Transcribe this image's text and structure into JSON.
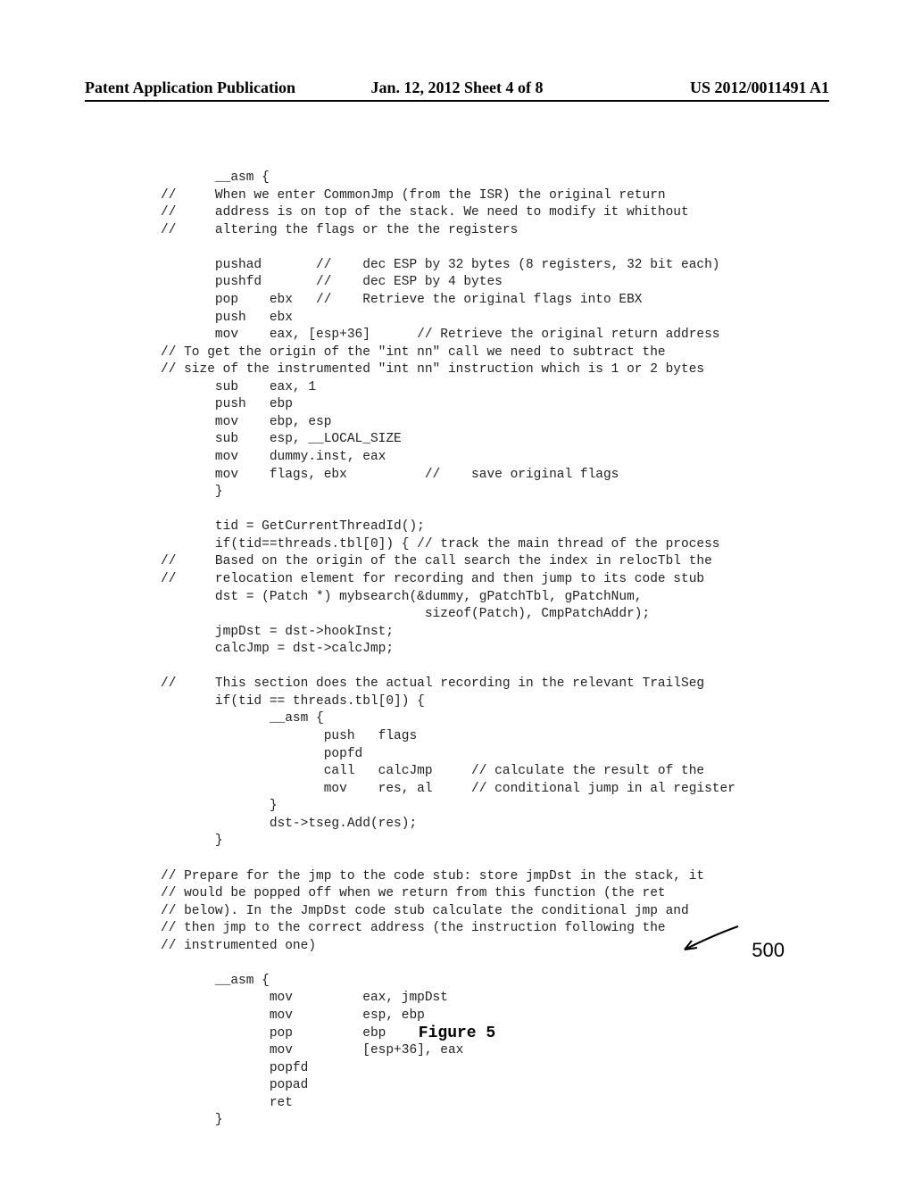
{
  "header": {
    "left": "Patent Application Publication",
    "center": "Jan. 12, 2012  Sheet 4 of 8",
    "right": "US 2012/0011491 A1"
  },
  "code": {
    "lines": [
      "       __asm {",
      "//     When we enter CommonJmp (from the ISR) the original return",
      "//     address is on top of the stack. We need to modify it whithout",
      "//     altering the flags or the the registers",
      "",
      "       pushad       //    dec ESP by 32 bytes (8 registers, 32 bit each)",
      "       pushfd       //    dec ESP by 4 bytes",
      "       pop    ebx   //    Retrieve the original flags into EBX",
      "       push   ebx",
      "       mov    eax, [esp+36]      // Retrieve the original return address",
      "// To get the origin of the \"int nn\" call we need to subtract the",
      "// size of the instrumented \"int nn\" instruction which is 1 or 2 bytes",
      "       sub    eax, 1",
      "       push   ebp",
      "       mov    ebp, esp",
      "       sub    esp, __LOCAL_SIZE",
      "       mov    dummy.inst, eax",
      "       mov    flags, ebx          //    save original flags",
      "       }",
      "",
      "       tid = GetCurrentThreadId();",
      "       if(tid==threads.tbl[0]) { // track the main thread of the process",
      "//     Based on the origin of the call search the index in relocTbl the",
      "//     relocation element for recording and then jump to its code stub",
      "       dst = (Patch *) mybsearch(&dummy, gPatchTbl, gPatchNum,",
      "                                  sizeof(Patch), CmpPatchAddr);",
      "       jmpDst = dst->hookInst;",
      "       calcJmp = dst->calcJmp;",
      "",
      "//     This section does the actual recording in the relevant TrailSeg",
      "       if(tid == threads.tbl[0]) {",
      "              __asm {",
      "                     push   flags",
      "                     popfd",
      "                     call   calcJmp     // calculate the result of the",
      "                     mov    res, al     // conditional jump in al register",
      "              }",
      "              dst->tseg.Add(res);",
      "       }",
      "",
      "// Prepare for the jmp to the code stub: store jmpDst in the stack, it",
      "// would be popped off when we return from this function (the ret",
      "// below). In the JmpDst code stub calculate the conditional jmp and",
      "// then jmp to the correct address (the instruction following the",
      "// instrumented one)",
      "",
      "       __asm {",
      "              mov         eax, jmpDst",
      "              mov         esp, ebp",
      "              pop         ebp",
      "              mov         [esp+36], eax",
      "              popfd",
      "              popad",
      "              ret",
      "       }"
    ]
  },
  "figure_label": "Figure 5",
  "ref_number": "500",
  "arrow": {
    "stroke": "#000",
    "stroke_width": 2
  }
}
